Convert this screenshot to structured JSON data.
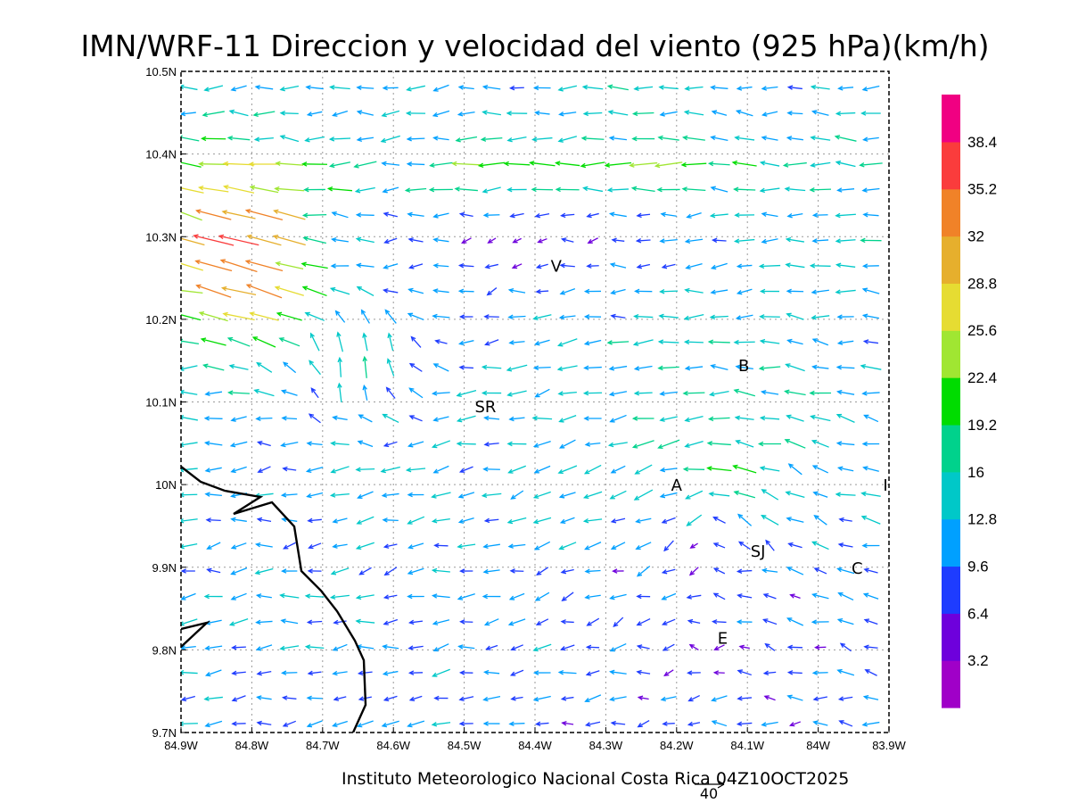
{
  "title": "IMN/WRF-11 Direccion y velocidad del viento (925 hPa)(km/h)",
  "footer": "Instituto Meteorologico Nacional Costa Rica 04Z10OCT2025",
  "reference_vector_label": "40",
  "map": {
    "lon_range": [
      -84.9,
      -83.9
    ],
    "lat_range": [
      9.7,
      10.5
    ],
    "x_ticks": [
      "84.9W",
      "84.8W",
      "84.7W",
      "84.6W",
      "84.5W",
      "84.4W",
      "84.3W",
      "84.2W",
      "84.1W",
      "84W",
      "83.9W"
    ],
    "y_ticks": [
      "9.7N",
      "9.8N",
      "9.9N",
      "10N",
      "10.1N",
      "10.2N",
      "10.3N",
      "10.4N",
      "10.5N"
    ],
    "places": [
      {
        "label": "V",
        "lon": -84.37,
        "lat": 10.265
      },
      {
        "label": "B",
        "lon": -84.105,
        "lat": 10.145
      },
      {
        "label": "SR",
        "lon": -84.47,
        "lat": 10.095
      },
      {
        "label": "A",
        "lon": -84.2,
        "lat": 10.0
      },
      {
        "label": "I",
        "lon": -83.905,
        "lat": 10.0
      },
      {
        "label": "SJ",
        "lon": -84.085,
        "lat": 9.92
      },
      {
        "label": "C",
        "lon": -83.945,
        "lat": 9.9
      },
      {
        "label": "E",
        "lon": -84.135,
        "lat": 9.815
      }
    ]
  },
  "colorbar": {
    "labels": [
      "3.2",
      "6.4",
      "9.6",
      "12.8",
      "16",
      "19.2",
      "22.4",
      "25.6",
      "28.8",
      "32",
      "35.2",
      "38.4"
    ],
    "colors": [
      "#a000c8",
      "#6e00dc",
      "#1e3cff",
      "#00a0ff",
      "#00c8c8",
      "#00d28c",
      "#00dc00",
      "#a0e632",
      "#e6dc32",
      "#e6af2d",
      "#f08228",
      "#fa3c3c",
      "#f00082"
    ]
  }
}
